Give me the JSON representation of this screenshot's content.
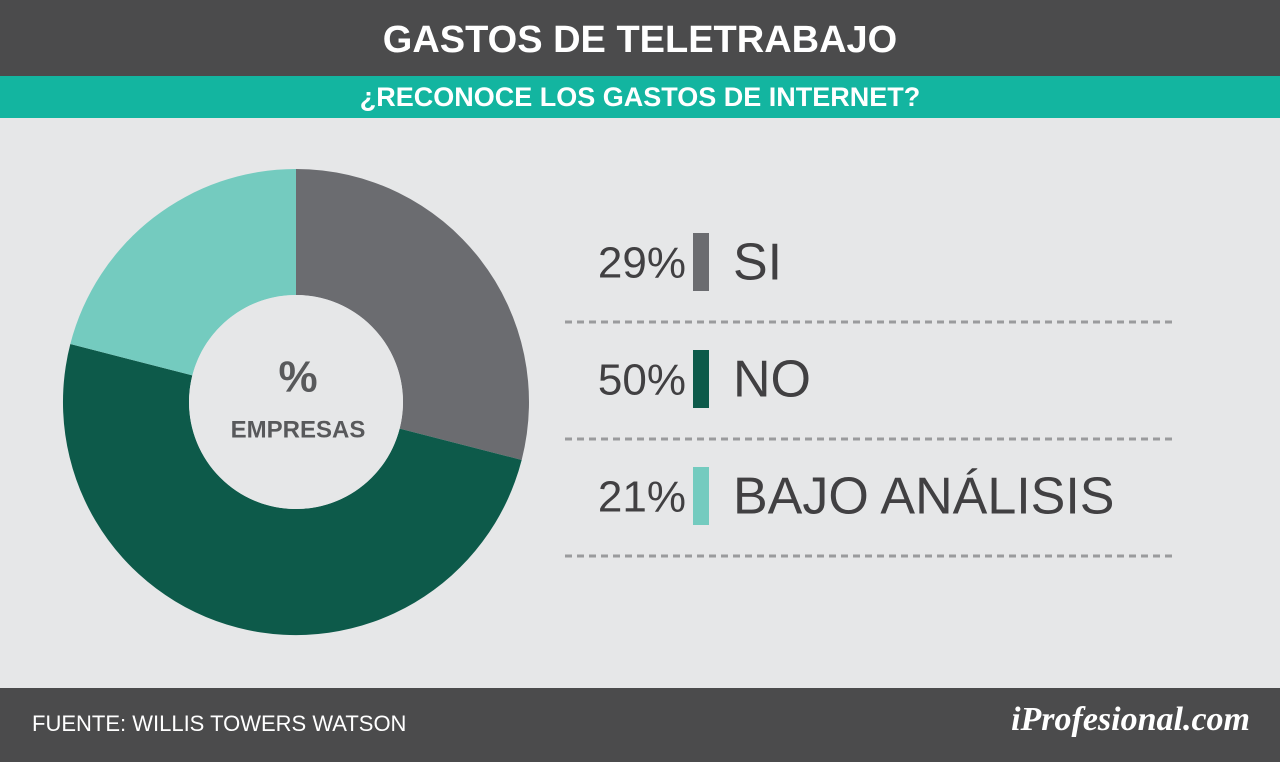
{
  "chart_data": {
    "type": "pie",
    "donut": true,
    "title": "GASTOS DE TELETRABAJO",
    "subtitle": "¿RECONOCE LOS GASTOS DE INTERNET?",
    "center_label": "%",
    "center_sublabel": "EMPRESAS",
    "categories": [
      "SI",
      "NO",
      "BAJO ANÁLISIS"
    ],
    "values": [
      29,
      50,
      21
    ],
    "value_labels": [
      "29%",
      "50%",
      "21%"
    ],
    "colors": [
      "#6b6c70",
      "#0d5a4a",
      "#74cbbf"
    ],
    "source": "FUENTE: WILLIS TOWERS WATSON",
    "brand": "iProfesional.com"
  }
}
